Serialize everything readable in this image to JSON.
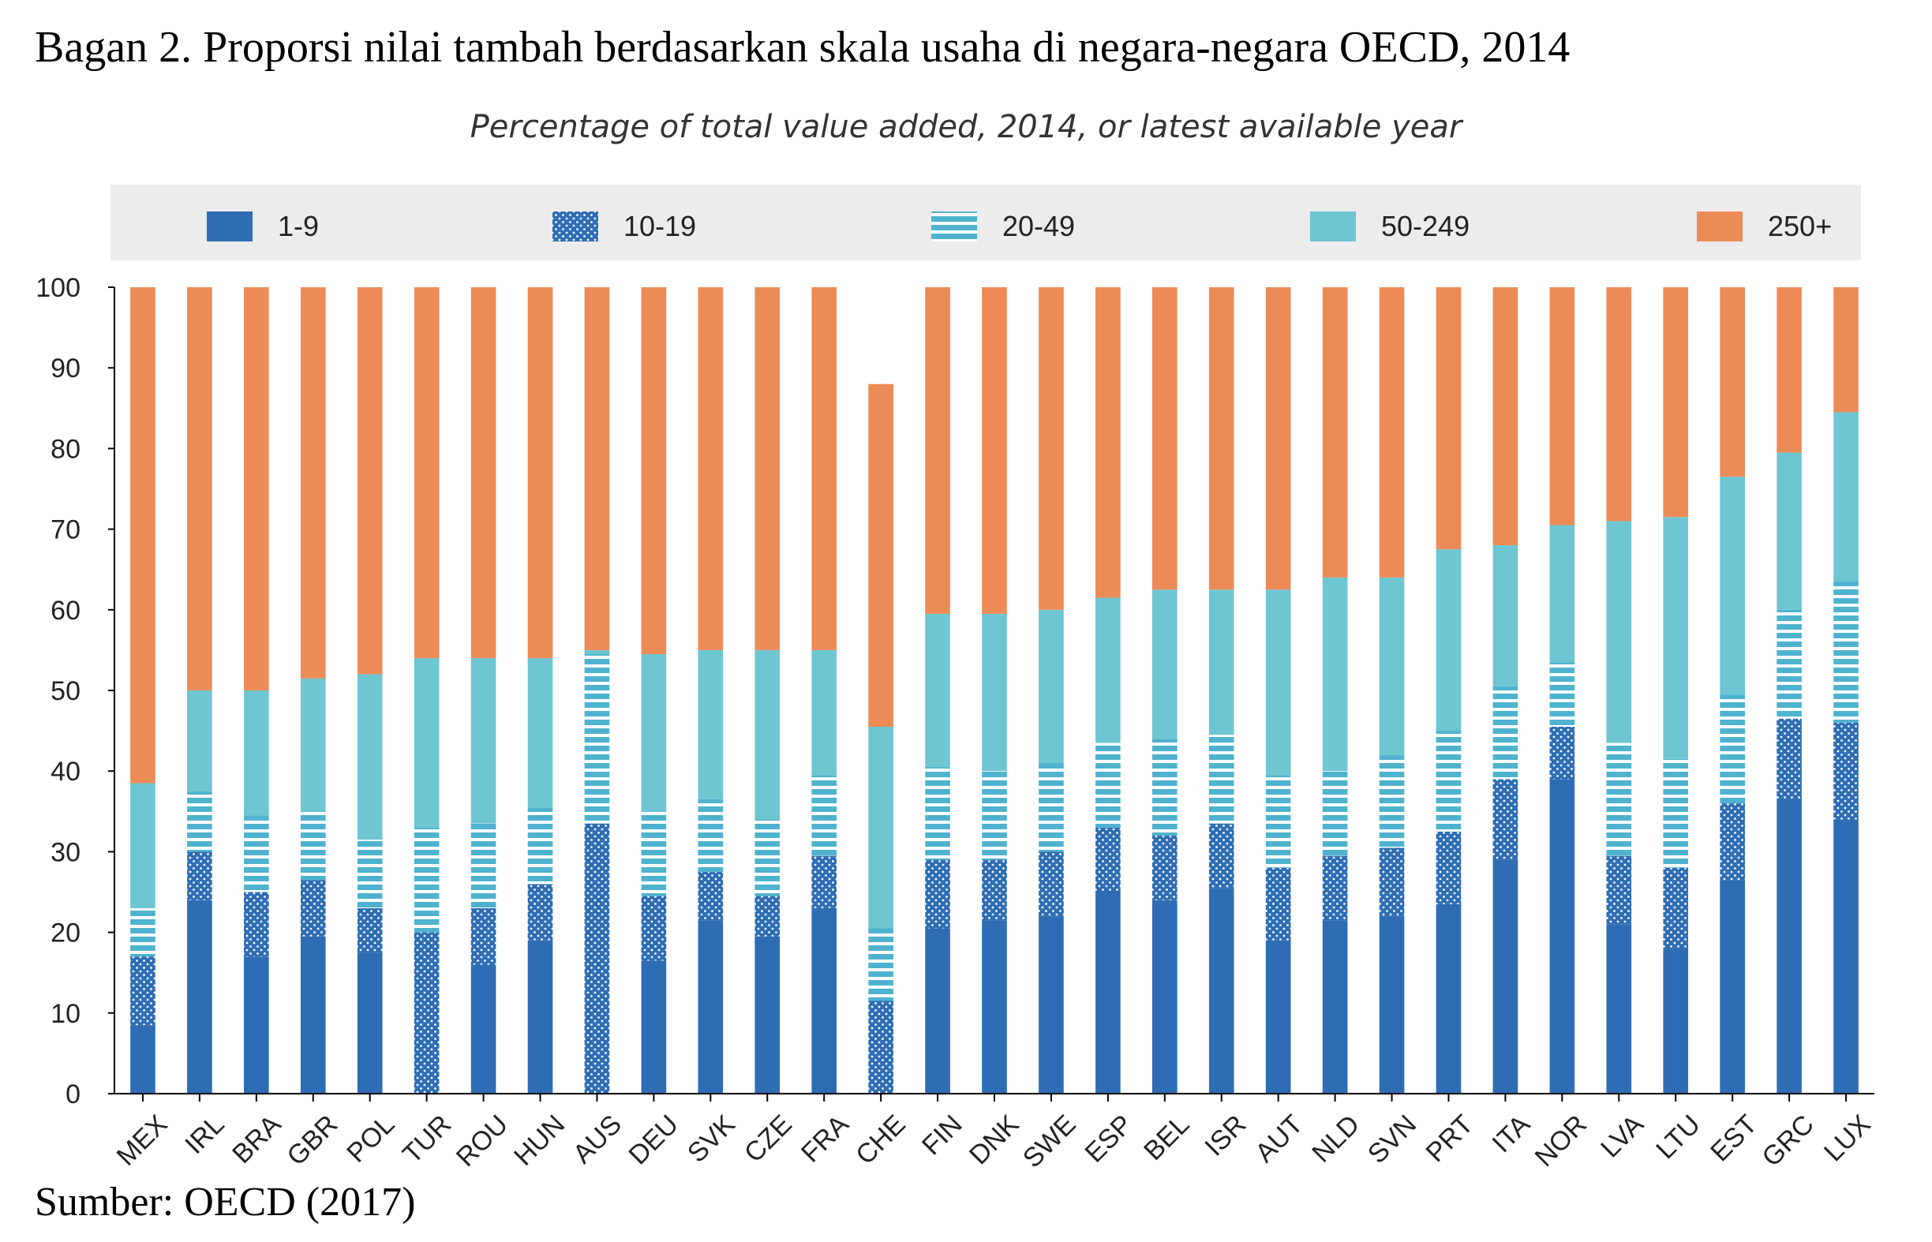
{
  "document": {
    "title": "Bagan 2. Proporsi nilai tambah berdasarkan skala usaha di negara-negara OECD, 2014",
    "source": "Sumber: OECD (2017)"
  },
  "chart_data": {
    "type": "bar",
    "stacked": true,
    "title": "Percentage of total value added, 2014, or latest available year",
    "xlabel": "",
    "ylabel": "",
    "ylim": [
      0,
      100
    ],
    "yticks": [
      0,
      10,
      20,
      30,
      40,
      50,
      60,
      70,
      80,
      90,
      100
    ],
    "grid": false,
    "legend_position": "top",
    "categories": [
      "MEX",
      "IRL",
      "BRA",
      "GBR",
      "POL",
      "TUR",
      "ROU",
      "HUN",
      "AUS",
      "DEU",
      "SVK",
      "CZE",
      "FRA",
      "CHE",
      "FIN",
      "DNK",
      "SWE",
      "ESP",
      "BEL",
      "ISR",
      "AUT",
      "NLD",
      "SVN",
      "PRT",
      "ITA",
      "NOR",
      "LVA",
      "LTU",
      "EST",
      "GRC",
      "LUX"
    ],
    "series": [
      {
        "name": "1-9",
        "color": "#2e6db4",
        "pattern": "solid",
        "values": [
          8.5,
          24,
          17,
          19.5,
          17.5,
          0,
          16,
          19,
          0,
          16.5,
          21.5,
          19.5,
          23,
          0,
          20.5,
          21.5,
          22,
          25,
          24,
          25.5,
          19,
          21.5,
          22,
          23.5,
          29,
          39,
          21,
          18,
          26.5,
          36.5,
          34
        ]
      },
      {
        "name": "10-19",
        "color": "#2e6db4",
        "pattern": "dots",
        "values": [
          8.5,
          6,
          8,
          7,
          5.5,
          20,
          7,
          7,
          33.5,
          8,
          6,
          5,
          6.5,
          11.5,
          8.5,
          7.5,
          8,
          8,
          8,
          8,
          9,
          8,
          8.5,
          9,
          10,
          6.5,
          8.5,
          10,
          9.5,
          10,
          12
        ]
      },
      {
        "name": "20-49",
        "color": "#4fb3cf",
        "pattern": "stripes",
        "values": [
          6,
          7.5,
          9.5,
          8.5,
          8.5,
          13,
          10.5,
          9.5,
          21,
          10.5,
          9,
          9.5,
          10,
          9,
          11.5,
          11,
          11,
          10.5,
          12,
          11,
          11.5,
          10.5,
          11.5,
          12.5,
          11.5,
          8,
          14,
          13.5,
          13.5,
          13.5,
          17.5
        ]
      },
      {
        "name": "50-249",
        "color": "#6ec6d3",
        "pattern": "solid",
        "values": [
          15.5,
          12.5,
          15.5,
          16.5,
          20.5,
          21,
          20.5,
          18.5,
          0.5,
          19.5,
          18.5,
          21,
          15.5,
          25,
          19,
          19.5,
          19,
          18,
          18.5,
          18,
          23,
          24,
          22,
          22.5,
          17.5,
          17,
          27.5,
          30,
          27,
          19.5,
          21
        ]
      },
      {
        "name": "250+",
        "color": "#ed8b57",
        "pattern": "solid",
        "values": [
          61.5,
          50,
          50,
          48.5,
          48,
          46,
          46,
          46,
          45,
          45.5,
          45,
          45,
          45,
          42.5,
          40.5,
          40.5,
          40,
          38.5,
          37.5,
          37.5,
          37.5,
          36,
          36,
          32.5,
          32,
          29.5,
          29,
          28.5,
          23.5,
          20.5,
          15.5
        ]
      }
    ]
  }
}
